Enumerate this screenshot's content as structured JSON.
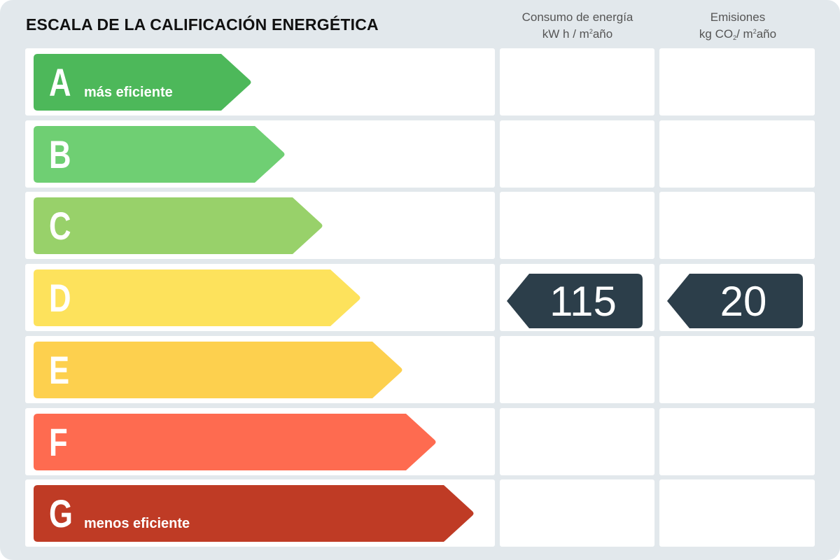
{
  "title": "ESCALA DE LA CALIFICACIÓN ENERGÉTICA",
  "columns": {
    "energy": {
      "line1": "Consumo de energía",
      "line2_prefix": "kW h / m",
      "line2_sup": "2",
      "line2_suffix": "año"
    },
    "emissions": {
      "line1": "Emisiones",
      "line2_prefix": "kg CO",
      "line2_sub": "2",
      "line2_mid": "/ m",
      "line2_sup": "2",
      "line2_suffix": "año"
    }
  },
  "chart_data": {
    "type": "bar",
    "title": "ESCALA DE LA CALIFICACIÓN ENERGÉTICA",
    "categories": [
      "A",
      "B",
      "C",
      "D",
      "E",
      "F",
      "G"
    ],
    "category_notes": {
      "A": "más eficiente",
      "G": "menos eficiente"
    },
    "colors": [
      "#4db85a",
      "#6fcf73",
      "#98d16a",
      "#fde25c",
      "#fdd04e",
      "#fe6b50",
      "#bf3b25"
    ],
    "rating": "D",
    "energy_consumption": 115,
    "emissions": 20,
    "tag_color": "#2c3e4a"
  }
}
